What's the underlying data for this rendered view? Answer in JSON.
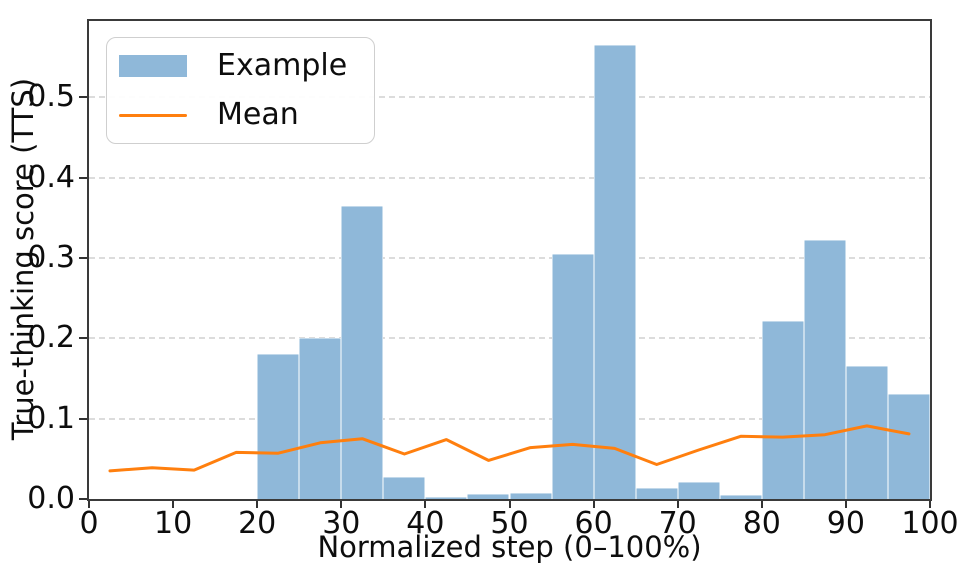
{
  "figure": {
    "background": "#ffffff",
    "text_color": "#0d0d0d",
    "spine_color": "#3a3a3a",
    "grid_color": "#dcdcdc"
  },
  "legend": {
    "position": "upper-left",
    "items": [
      {
        "label": "Example",
        "marker": "patch",
        "color": "#8fb8d9"
      },
      {
        "label": "Mean",
        "marker": "line",
        "color": "#ff7f0e"
      }
    ]
  },
  "chart_data": {
    "type": "bar",
    "title": "",
    "xlabel": "Normalized step (0–100%)",
    "ylabel": "True-thinking score (TTS)",
    "xlim": [
      0,
      100
    ],
    "ylim": [
      0,
      0.595
    ],
    "xticks": [
      "0",
      "10",
      "20",
      "30",
      "40",
      "50",
      "60",
      "70",
      "80",
      "90",
      "100"
    ],
    "ytick_values": [
      0.0,
      0.1,
      0.2,
      0.3,
      0.4,
      0.5
    ],
    "ytick_labels": [
      "0.0",
      "0.1",
      "0.2",
      "0.3",
      "0.4",
      "0.5"
    ],
    "grid": "horizontal dashed lines at y ticks, drawn below data",
    "legend_position": "upper left",
    "bin_width": 5,
    "series": [
      {
        "name": "Example",
        "type": "bar",
        "color": "#8fb8d9",
        "bin_edges": [
          0,
          5,
          10,
          15,
          20,
          25,
          30,
          35,
          40,
          45,
          50,
          55,
          60,
          65,
          70,
          75,
          80,
          85,
          90,
          95,
          100
        ],
        "values": [
          0,
          0,
          0,
          0,
          0.18,
          0.201,
          0.365,
          0.027,
          0.003,
          0.006,
          0.007,
          0.305,
          0.565,
          0.014,
          0.021,
          0.005,
          0.222,
          0.322,
          0.165,
          0.131
        ]
      },
      {
        "name": "Mean",
        "type": "line",
        "color": "#ff7f0e",
        "line_width": 3,
        "x": [
          2.5,
          7.5,
          12.5,
          17.5,
          22.5,
          27.5,
          32.5,
          37.5,
          42.5,
          47.5,
          52.5,
          57.5,
          62.5,
          67.5,
          72.5,
          77.5,
          82.5,
          87.5,
          92.5,
          97.5
        ],
        "values": [
          0.035,
          0.039,
          0.036,
          0.058,
          0.057,
          0.07,
          0.075,
          0.056,
          0.074,
          0.048,
          0.064,
          0.068,
          0.063,
          0.043,
          0.061,
          0.078,
          0.077,
          0.08,
          0.091,
          0.081
        ]
      }
    ]
  }
}
